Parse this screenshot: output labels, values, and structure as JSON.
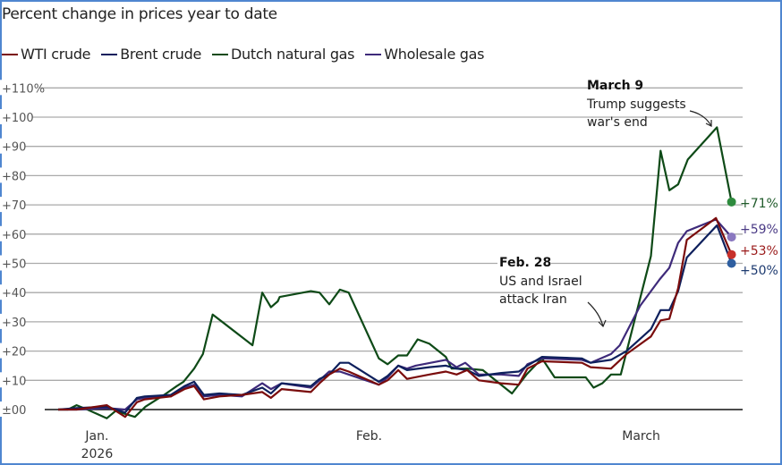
{
  "title": "Percent change in prices year to date",
  "legend": [
    {
      "label": "WTI crude",
      "color": "#7a0c0c"
    },
    {
      "label": "Brent crude",
      "color": "#0d1f5c"
    },
    {
      "label": "Dutch natural gas",
      "color": "#0e4a17"
    },
    {
      "label": "Wholesale gas",
      "color": "#3e2a7a"
    }
  ],
  "chart_data": {
    "type": "line",
    "title": "Percent change in prices year to date",
    "xlabel": "",
    "ylabel": "",
    "x_unit": "days since Dec. 31, 2025",
    "xlim": [
      0,
      70
    ],
    "ylim": [
      0,
      110
    ],
    "y_ticks": [
      {
        "value": 0,
        "label": "±00"
      },
      {
        "value": 10,
        "label": "+10"
      },
      {
        "value": 20,
        "label": "+20"
      },
      {
        "value": 30,
        "label": "+30"
      },
      {
        "value": 40,
        "label": "+40"
      },
      {
        "value": 50,
        "label": "+50"
      },
      {
        "value": 60,
        "label": "+60"
      },
      {
        "value": 70,
        "label": "+70"
      },
      {
        "value": 80,
        "label": "+80"
      },
      {
        "value": 90,
        "label": "+90"
      },
      {
        "value": 100,
        "label": "+100"
      },
      {
        "value": 110,
        "label": "+110%"
      }
    ],
    "x_ticks": [
      {
        "value": 4,
        "label": "Jan.",
        "sublabel": "2026"
      },
      {
        "value": 32,
        "label": "Feb."
      },
      {
        "value": 60,
        "label": "March"
      }
    ],
    "grid": true,
    "legend_position": "top-left",
    "series": [
      {
        "name": "WTI crude",
        "color": "#7a0c0c",
        "dot_color": "#c8302a",
        "end_label": "+53%",
        "points": [
          [
            0,
            0
          ],
          [
            1.9,
            0
          ],
          [
            5,
            1.5
          ],
          [
            6.9,
            -2.5
          ],
          [
            8.1,
            2.5
          ],
          [
            8.9,
            3.5
          ],
          [
            11.6,
            4.5
          ],
          [
            13,
            7
          ],
          [
            14,
            8
          ],
          [
            15,
            3.5
          ],
          [
            16.6,
            4.5
          ],
          [
            18.9,
            5
          ],
          [
            21,
            6
          ],
          [
            21.9,
            4
          ],
          [
            23,
            7
          ],
          [
            26,
            6
          ],
          [
            26.9,
            9
          ],
          [
            27.9,
            12
          ],
          [
            29,
            14
          ],
          [
            29.9,
            13
          ],
          [
            33,
            8.5
          ],
          [
            33.9,
            10
          ],
          [
            35,
            13.5
          ],
          [
            35.9,
            10.5
          ],
          [
            38.2,
            12
          ],
          [
            39.9,
            13
          ],
          [
            41,
            12
          ],
          [
            42.1,
            13.5
          ],
          [
            43.3,
            10
          ],
          [
            45.6,
            9
          ],
          [
            47.4,
            8.5
          ],
          [
            48.3,
            14
          ],
          [
            49.8,
            16.5
          ],
          [
            53.9,
            16
          ],
          [
            54.8,
            14.5
          ],
          [
            56.9,
            14
          ],
          [
            58.5,
            19
          ],
          [
            61,
            25
          ],
          [
            62,
            30.5
          ],
          [
            62.9,
            31
          ],
          [
            63.8,
            41.5
          ],
          [
            64.7,
            58
          ],
          [
            67.7,
            65.5
          ],
          [
            69.3,
            53
          ]
        ]
      },
      {
        "name": "Brent crude",
        "color": "#0d1f5c",
        "dot_color": "#2f5fa0",
        "end_label": "+50%",
        "points": [
          [
            0,
            0
          ],
          [
            1.9,
            0.5
          ],
          [
            5,
            1
          ],
          [
            6.9,
            -1
          ],
          [
            8.1,
            4
          ],
          [
            8.9,
            4.5
          ],
          [
            11.6,
            5
          ],
          [
            13,
            8
          ],
          [
            14,
            9.5
          ],
          [
            15,
            5
          ],
          [
            16.6,
            5.5
          ],
          [
            18.9,
            5
          ],
          [
            21,
            7.5
          ],
          [
            21.9,
            5.5
          ],
          [
            23,
            9
          ],
          [
            26,
            8
          ],
          [
            26.9,
            10.5
          ],
          [
            27.9,
            12
          ],
          [
            29,
            16
          ],
          [
            29.9,
            16
          ],
          [
            33,
            9.5
          ],
          [
            33.9,
            11.5
          ],
          [
            35,
            15
          ],
          [
            35.9,
            13.5
          ],
          [
            38.2,
            14.5
          ],
          [
            39.9,
            15
          ],
          [
            41,
            14
          ],
          [
            42.1,
            13.5
          ],
          [
            43.3,
            11.5
          ],
          [
            45.6,
            12.5
          ],
          [
            47.4,
            13
          ],
          [
            48.3,
            15
          ],
          [
            49.8,
            18
          ],
          [
            53.9,
            17.5
          ],
          [
            54.8,
            16
          ],
          [
            56.9,
            17
          ],
          [
            58.5,
            20
          ],
          [
            61,
            27.5
          ],
          [
            62,
            34
          ],
          [
            62.9,
            34
          ],
          [
            63.8,
            40.5
          ],
          [
            64.7,
            52
          ],
          [
            67.8,
            63
          ],
          [
            69.3,
            50
          ]
        ]
      },
      {
        "name": "Dutch natural gas",
        "color": "#0e4a17",
        "dot_color": "#2e8b3e",
        "end_label": "+71%",
        "points": [
          [
            0,
            0
          ],
          [
            1,
            0
          ],
          [
            1.9,
            1.5
          ],
          [
            3,
            0
          ],
          [
            5,
            -3
          ],
          [
            5.9,
            -0.5
          ],
          [
            7.9,
            -2.5
          ],
          [
            9,
            1
          ],
          [
            10.9,
            5
          ],
          [
            12.2,
            8
          ],
          [
            12.9,
            9.5
          ],
          [
            14,
            14
          ],
          [
            14.9,
            19
          ],
          [
            15.9,
            32.5
          ],
          [
            20,
            22
          ],
          [
            21,
            40
          ],
          [
            21.9,
            35
          ],
          [
            22.6,
            37
          ],
          [
            22.8,
            38.5
          ],
          [
            26,
            40.5
          ],
          [
            26.9,
            40
          ],
          [
            27.9,
            36
          ],
          [
            29,
            41
          ],
          [
            29.9,
            40
          ],
          [
            33,
            17.5
          ],
          [
            33.9,
            15.5
          ],
          [
            35,
            18.5
          ],
          [
            35.9,
            18.5
          ],
          [
            36.4,
            21
          ],
          [
            37,
            24
          ],
          [
            38.2,
            22.5
          ],
          [
            39.9,
            18
          ],
          [
            40.5,
            14
          ],
          [
            42.1,
            14
          ],
          [
            43.7,
            13.5
          ],
          [
            45.4,
            9
          ],
          [
            46.7,
            5.5
          ],
          [
            48.2,
            12
          ],
          [
            49.8,
            17.5
          ],
          [
            51.1,
            11
          ],
          [
            54.3,
            11
          ],
          [
            55.1,
            7.5
          ],
          [
            56,
            9
          ],
          [
            56.9,
            12
          ],
          [
            57.9,
            12
          ],
          [
            61,
            52.5
          ],
          [
            62,
            88.5
          ],
          [
            62.9,
            75
          ],
          [
            63.8,
            77
          ],
          [
            64.8,
            85.5
          ],
          [
            67.8,
            96.5
          ],
          [
            69.3,
            71
          ]
        ]
      },
      {
        "name": "Wholesale gas",
        "color": "#3e2a7a",
        "dot_color": "#8a78c0",
        "end_label": "+59%",
        "points": [
          [
            0,
            0
          ],
          [
            1.9,
            0
          ],
          [
            5,
            0.5
          ],
          [
            6.9,
            0
          ],
          [
            8.1,
            3.5
          ],
          [
            8.9,
            4
          ],
          [
            11.6,
            4.5
          ],
          [
            13,
            7.5
          ],
          [
            14,
            8.5
          ],
          [
            15,
            4.5
          ],
          [
            16.6,
            5
          ],
          [
            18.9,
            4.5
          ],
          [
            21,
            9
          ],
          [
            21.9,
            7
          ],
          [
            23,
            9
          ],
          [
            26,
            7.5
          ],
          [
            26.9,
            10
          ],
          [
            27.9,
            13
          ],
          [
            29,
            13
          ],
          [
            29.9,
            12
          ],
          [
            33,
            8.5
          ],
          [
            33.9,
            11
          ],
          [
            35,
            15
          ],
          [
            35.9,
            14
          ],
          [
            36.8,
            15
          ],
          [
            39.9,
            17
          ],
          [
            41,
            14.5
          ],
          [
            41.9,
            16
          ],
          [
            43.3,
            12
          ],
          [
            45.6,
            12
          ],
          [
            47.4,
            11.5
          ],
          [
            48.3,
            15.5
          ],
          [
            49.8,
            17.5
          ],
          [
            53.9,
            17
          ],
          [
            54.8,
            16
          ],
          [
            56.9,
            19
          ],
          [
            57.8,
            22
          ],
          [
            59.9,
            35.5
          ],
          [
            61.9,
            44.5
          ],
          [
            62.9,
            48.5
          ],
          [
            63.8,
            57
          ],
          [
            64.7,
            61
          ],
          [
            67.7,
            65
          ],
          [
            69.3,
            59
          ]
        ]
      }
    ],
    "annotations": [
      {
        "heading": "March 9",
        "lines": [
          "Trump suggests",
          "war's end"
        ]
      },
      {
        "heading": "Feb. 28",
        "lines": [
          "US and Israel",
          "attack Iran"
        ]
      }
    ]
  }
}
